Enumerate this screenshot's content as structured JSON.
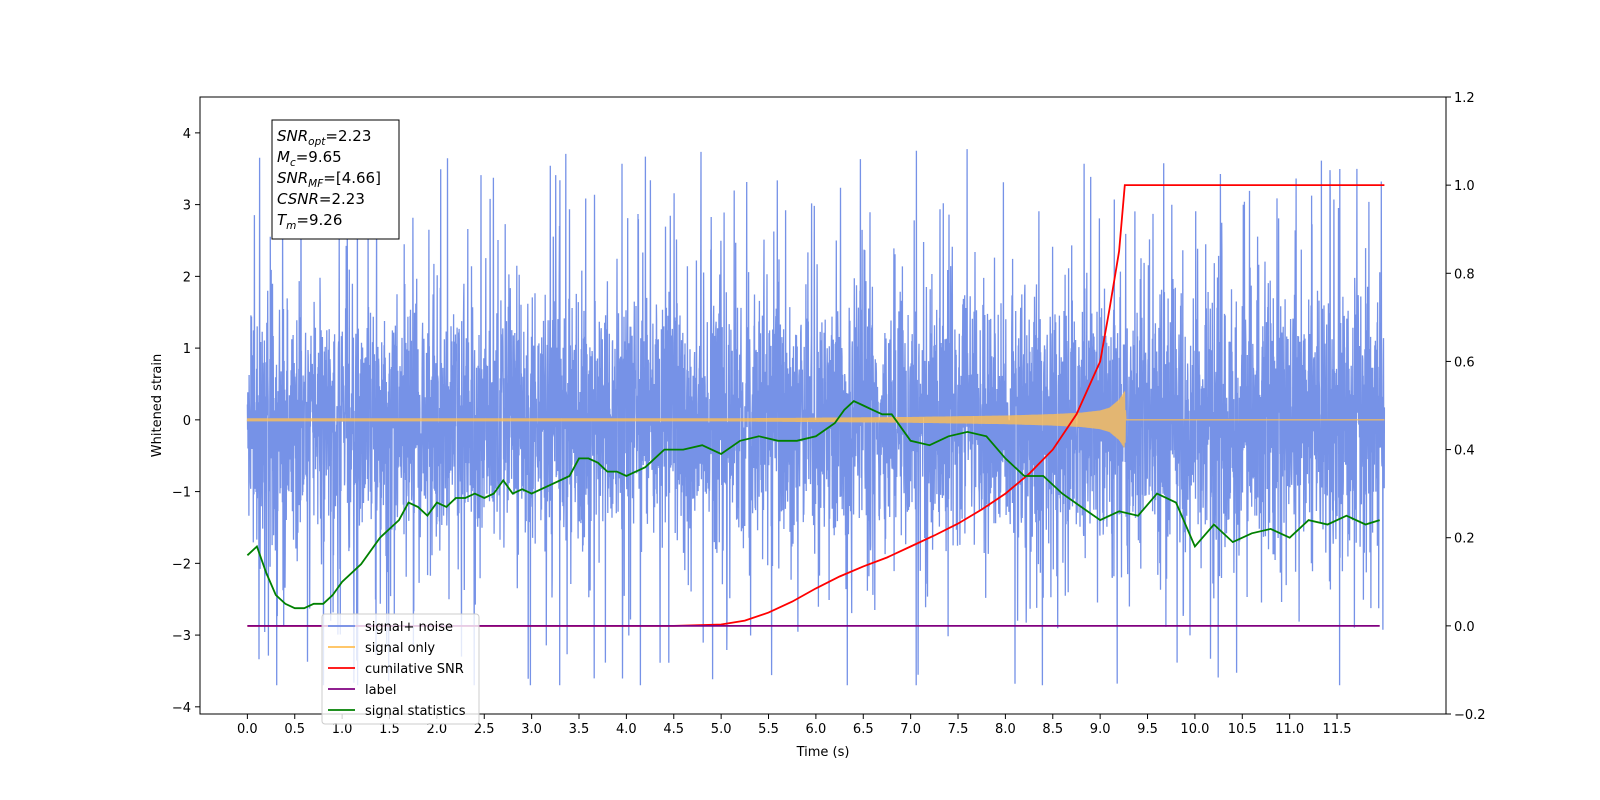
{
  "chart_data": {
    "type": "line",
    "xlabel": "Time (s)",
    "ylabel": "Whitened strain",
    "xlim": [
      -0.5,
      12.65
    ],
    "ylim": [
      -4.1,
      4.5
    ],
    "y2lim": [
      -0.2,
      1.2
    ],
    "grid": false,
    "legend_position": "bottom-left",
    "x_tick_values": [
      0.0,
      0.5,
      1.0,
      1.5,
      2.0,
      2.5,
      3.0,
      3.5,
      4.0,
      4.5,
      5.0,
      5.5,
      6.0,
      6.5,
      7.0,
      7.5,
      8.0,
      8.5,
      9.0,
      9.5,
      10.0,
      10.5,
      11.0,
      11.5
    ],
    "x_tick_labels": [
      "0.0",
      "0.5",
      "1.0",
      "1.5",
      "2.0",
      "2.5",
      "3.0",
      "3.5",
      "4.0",
      "4.5",
      "5.0",
      "5.5",
      "6.0",
      "6.5",
      "7.0",
      "7.5",
      "8.0",
      "8.5",
      "9.0",
      "9.5",
      "10.0",
      "10.5",
      "11.0",
      "11.5"
    ],
    "y_tick_values": [
      -4,
      -3,
      -2,
      -1,
      0,
      1,
      2,
      3,
      4
    ],
    "y_tick_labels": [
      "−4",
      "−3",
      "−2",
      "−1",
      "0",
      "1",
      "2",
      "3",
      "4"
    ],
    "y2_tick_values": [
      -0.2,
      0.0,
      0.2,
      0.4,
      0.6,
      0.8,
      1.0,
      1.2
    ],
    "y2_tick_labels": [
      "−0.2",
      "0.0",
      "0.2",
      "0.4",
      "0.6",
      "0.8",
      "1.0",
      "1.2"
    ],
    "series": [
      {
        "name": "signal+ noise",
        "color": "#6f8ce6",
        "axis": "left",
        "x_range": [
          0.0,
          12.0
        ],
        "typical_range": [
          -2.0,
          2.0
        ],
        "extremes": [
          -3.7,
          4.12
        ]
      },
      {
        "name": "signal only",
        "color": "#ffbf55",
        "axis": "left",
        "x": [
          0,
          5.0,
          6.0,
          7.0,
          7.5,
          8.0,
          8.5,
          8.8,
          9.0,
          9.1,
          9.2,
          9.26,
          9.27,
          12.0
        ],
        "envelope": [
          0.02,
          0.02,
          0.03,
          0.04,
          0.05,
          0.06,
          0.08,
          0.1,
          0.13,
          0.17,
          0.28,
          0.4,
          0.0,
          0.0
        ]
      },
      {
        "name": "cumilative SNR",
        "color": "#ff0000",
        "axis": "right",
        "x": [
          0.0,
          4.5,
          5.0,
          5.25,
          5.5,
          5.75,
          6.0,
          6.25,
          6.5,
          6.75,
          7.0,
          7.25,
          7.5,
          7.75,
          8.0,
          8.25,
          8.5,
          8.75,
          9.0,
          9.1,
          9.2,
          9.26,
          12.0
        ],
        "values": [
          0.0,
          0.0,
          0.003,
          0.012,
          0.03,
          0.055,
          0.085,
          0.112,
          0.135,
          0.155,
          0.18,
          0.205,
          0.232,
          0.264,
          0.3,
          0.345,
          0.4,
          0.48,
          0.6,
          0.72,
          0.85,
          1.0,
          1.0
        ]
      },
      {
        "name": "label",
        "color": "#800080",
        "axis": "right",
        "x": [
          0.0,
          11.95
        ],
        "values": [
          0.0,
          0.0
        ]
      },
      {
        "name": "signal statistics",
        "color": "#008000",
        "axis": "right",
        "x": [
          0.0,
          0.1,
          0.2,
          0.3,
          0.4,
          0.5,
          0.6,
          0.7,
          0.8,
          0.9,
          1.0,
          1.2,
          1.4,
          1.6,
          1.7,
          1.8,
          1.9,
          2.0,
          2.1,
          2.2,
          2.3,
          2.4,
          2.5,
          2.6,
          2.7,
          2.8,
          2.9,
          3.0,
          3.2,
          3.4,
          3.5,
          3.6,
          3.7,
          3.8,
          3.9,
          4.0,
          4.2,
          4.4,
          4.6,
          4.8,
          5.0,
          5.2,
          5.4,
          5.6,
          5.8,
          6.0,
          6.2,
          6.3,
          6.4,
          6.5,
          6.6,
          6.7,
          6.8,
          7.0,
          7.2,
          7.4,
          7.6,
          7.8,
          8.0,
          8.2,
          8.4,
          8.6,
          8.8,
          9.0,
          9.2,
          9.4,
          9.6,
          9.8,
          10.0,
          10.2,
          10.4,
          10.6,
          10.8,
          11.0,
          11.2,
          11.4,
          11.6,
          11.8,
          11.95
        ],
        "values": [
          0.16,
          0.18,
          0.12,
          0.07,
          0.05,
          0.04,
          0.04,
          0.05,
          0.05,
          0.07,
          0.1,
          0.14,
          0.2,
          0.24,
          0.28,
          0.27,
          0.25,
          0.28,
          0.27,
          0.29,
          0.29,
          0.3,
          0.29,
          0.3,
          0.33,
          0.3,
          0.31,
          0.3,
          0.32,
          0.34,
          0.38,
          0.38,
          0.37,
          0.35,
          0.35,
          0.34,
          0.36,
          0.4,
          0.4,
          0.41,
          0.39,
          0.42,
          0.43,
          0.42,
          0.42,
          0.43,
          0.46,
          0.49,
          0.51,
          0.5,
          0.49,
          0.48,
          0.48,
          0.42,
          0.41,
          0.43,
          0.44,
          0.43,
          0.38,
          0.34,
          0.34,
          0.3,
          0.27,
          0.24,
          0.26,
          0.25,
          0.3,
          0.28,
          0.18,
          0.23,
          0.19,
          0.21,
          0.22,
          0.2,
          0.24,
          0.23,
          0.25,
          0.23,
          0.24
        ]
      }
    ],
    "annotation_lines": [
      {
        "name": "SNR",
        "sub": "opt",
        "value": "=2.23"
      },
      {
        "name": "M",
        "sub": "c",
        "value": "=9.65"
      },
      {
        "name": "SNR",
        "sub": "MF",
        "value": "=[4.66]"
      },
      {
        "name": "CSNR",
        "sub": "",
        "value": "=2.23"
      },
      {
        "name": "T",
        "sub": "m",
        "value": "=9.26"
      }
    ]
  }
}
